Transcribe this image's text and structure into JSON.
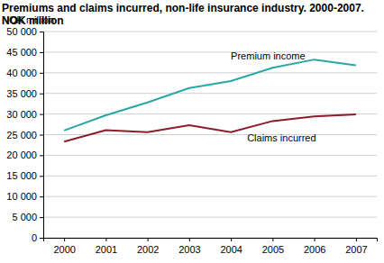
{
  "chart_data": {
    "type": "line",
    "title": "Premiums and claims incurred, non-life insurance industry. 2000-2007. NOK million",
    "y_label": "NOK million",
    "categories": [
      "2000",
      "2001",
      "2002",
      "2003",
      "2004",
      "2005",
      "2006",
      "2007"
    ],
    "series": [
      {
        "name": "Premium income",
        "color": "#2aa6a4",
        "values": [
          26000,
          29700,
          32800,
          36300,
          38000,
          41200,
          43200,
          41800
        ]
      },
      {
        "name": "Claims incurred",
        "color": "#8c1c2c",
        "values": [
          23300,
          26100,
          25600,
          27300,
          25600,
          28300,
          29400,
          29900
        ]
      }
    ],
    "ylim": [
      0,
      50000
    ],
    "yticks": [
      0,
      {
        "value": 5000,
        "label": "5 000"
      },
      {
        "value": 10000,
        "label": "10 000"
      },
      {
        "value": 15000,
        "label": "15 000"
      },
      {
        "value": 20000,
        "label": "20 000"
      },
      {
        "value": 25000,
        "label": "25 000"
      },
      {
        "value": 30000,
        "label": "30 000"
      },
      {
        "value": 35000,
        "label": "35 000"
      },
      {
        "value": 40000,
        "label": "40 000"
      },
      {
        "value": 45000,
        "label": "45 000"
      },
      {
        "value": 50000,
        "label": "50 000"
      }
    ],
    "grid": true
  }
}
